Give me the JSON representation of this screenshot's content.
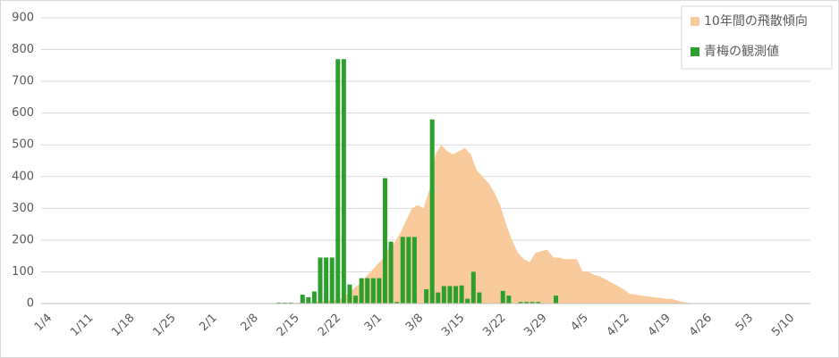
{
  "chart_data": {
    "type": "area-bar",
    "categories": [
      "1/4",
      null,
      null,
      null,
      null,
      null,
      null,
      "1/11",
      null,
      null,
      null,
      null,
      null,
      null,
      "1/18",
      null,
      null,
      null,
      null,
      null,
      null,
      "1/25",
      null,
      null,
      null,
      null,
      null,
      null,
      "2/1",
      null,
      null,
      null,
      null,
      null,
      null,
      "2/8",
      null,
      null,
      null,
      null,
      null,
      null,
      "2/15",
      null,
      null,
      null,
      null,
      null,
      null,
      "2/22",
      null,
      null,
      null,
      null,
      null,
      null,
      "3/1",
      null,
      null,
      null,
      null,
      null,
      null,
      "3/8",
      null,
      null,
      null,
      null,
      null,
      null,
      "3/15",
      null,
      null,
      null,
      null,
      null,
      null,
      "3/22",
      null,
      null,
      null,
      null,
      null,
      null,
      "3/29",
      null,
      null,
      null,
      null,
      null,
      null,
      "4/5",
      null,
      null,
      null,
      null,
      null,
      null,
      "4/12",
      null,
      null,
      null,
      null,
      null,
      null,
      "4/19",
      null,
      null,
      null,
      null,
      null,
      null,
      "4/26",
      null,
      null,
      null,
      null,
      null,
      null,
      "5/3",
      null,
      null,
      null,
      null,
      null,
      null,
      "5/10"
    ],
    "series": [
      {
        "name": "10年間の飛散傾向",
        "type": "area",
        "color": "#f9cb9c",
        "values": [
          0,
          0,
          0,
          0,
          0,
          0,
          0,
          0,
          0,
          0,
          0,
          0,
          0,
          0,
          0,
          0,
          0,
          0,
          0,
          0,
          0,
          0,
          0,
          0,
          0,
          0,
          0,
          0,
          0,
          0,
          0,
          0,
          0,
          0,
          0,
          0,
          0,
          0,
          0,
          0,
          0,
          0,
          2,
          3,
          4,
          5,
          6,
          8,
          10,
          12,
          15,
          30,
          45,
          60,
          80,
          100,
          120,
          140,
          170,
          190,
          220,
          260,
          300,
          310,
          300,
          360,
          470,
          500,
          480,
          470,
          480,
          490,
          470,
          420,
          400,
          380,
          350,
          310,
          250,
          200,
          160,
          140,
          130,
          160,
          165,
          170,
          145,
          145,
          140,
          140,
          140,
          100,
          100,
          90,
          85,
          75,
          65,
          55,
          45,
          30,
          28,
          25,
          22,
          20,
          18,
          15,
          15,
          10,
          5,
          2,
          0,
          0,
          0,
          0,
          0,
          0,
          0,
          0,
          0,
          0,
          0,
          0,
          0,
          0,
          0,
          0,
          0
        ]
      },
      {
        "name": "青梅の観測値",
        "type": "bar",
        "color": "#2ca02c",
        "values": [
          0,
          0,
          0,
          0,
          0,
          0,
          0,
          0,
          0,
          0,
          0,
          0,
          0,
          0,
          0,
          0,
          0,
          0,
          0,
          0,
          0,
          0,
          0,
          0,
          0,
          0,
          0,
          0,
          0,
          0,
          0,
          0,
          0,
          0,
          0,
          0,
          0,
          0,
          0,
          3,
          3,
          3,
          0,
          28,
          20,
          38,
          145,
          145,
          145,
          770,
          770,
          60,
          25,
          80,
          80,
          80,
          80,
          395,
          195,
          5,
          210,
          210,
          210,
          0,
          45,
          580,
          35,
          55,
          55,
          55,
          57,
          15,
          100,
          35,
          0,
          0,
          0,
          40,
          25,
          0,
          5,
          5,
          5,
          5,
          0,
          0,
          25,
          0,
          0,
          0,
          0,
          0,
          0,
          0,
          0,
          0,
          0,
          0,
          0,
          0,
          0,
          0,
          0,
          0,
          0,
          0,
          0,
          0,
          0,
          0,
          0,
          0,
          0,
          0,
          0,
          0,
          0,
          0,
          0,
          0,
          0,
          0,
          0,
          0,
          0,
          0,
          0
        ]
      }
    ],
    "ylim": [
      0,
      900
    ],
    "yticks": [
      0,
      100,
      200,
      300,
      400,
      500,
      600,
      700,
      800,
      900
    ],
    "grid": true,
    "legend": "top-right"
  }
}
